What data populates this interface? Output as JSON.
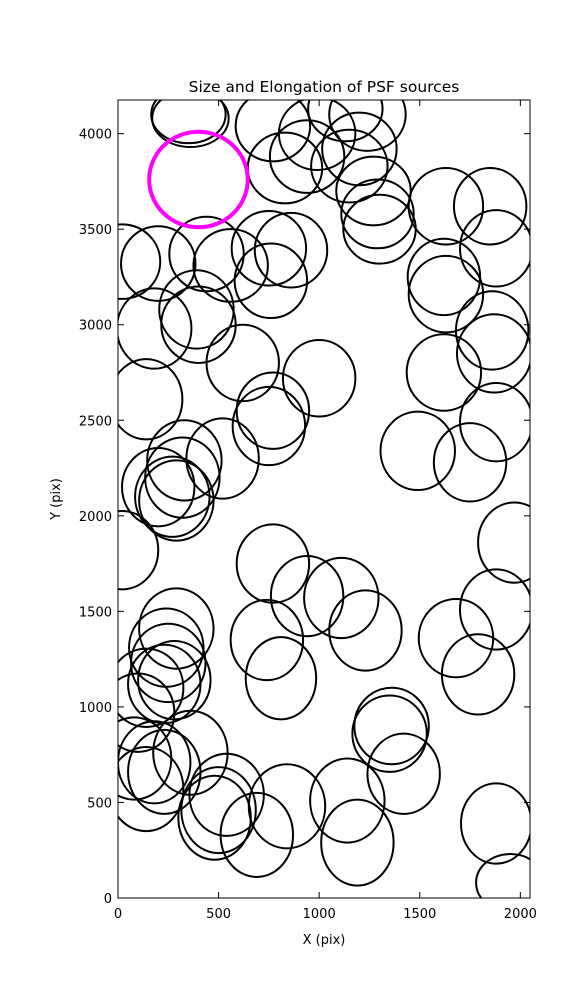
{
  "chart_data": {
    "type": "ellipse",
    "title": "Size and Elongation of PSF sources",
    "xlabel": "X (pix)",
    "ylabel": "Y (pix)",
    "xlim": [
      0,
      2048
    ],
    "ylim": [
      0,
      4176
    ],
    "xticks": [
      0,
      500,
      1000,
      1500,
      2000
    ],
    "yticks": [
      0,
      500,
      1000,
      1500,
      2000,
      2500,
      3000,
      3500,
      4000
    ],
    "series": [
      {
        "color": "#000000",
        "x": [
          350,
          360,
          770,
          830,
          940,
          990,
          1130,
          1150,
          1200,
          1240,
          1270,
          1290,
          1300,
          1630,
          1850,
          1880,
          1620,
          1630,
          1860,
          1870,
          1620,
          1880,
          1750,
          1490,
          1970,
          1880,
          1680,
          1790,
          1880,
          1950,
          1000,
          770,
          750,
          620,
          750,
          860,
          760,
          560,
          440,
          390,
          400,
          200,
          20,
          180,
          140,
          520,
          330,
          320,
          200,
          290,
          270,
          20,
          770,
          940,
          1110,
          1230,
          740,
          810,
          290,
          240,
          250,
          280,
          230,
          140,
          100,
          80,
          180,
          140,
          230,
          360,
          540,
          500,
          480,
          690,
          840,
          1140,
          1190,
          1350,
          1360,
          1420
        ],
        "y": [
          4100,
          4080,
          4040,
          3820,
          3880,
          4000,
          4130,
          3830,
          3920,
          4100,
          3700,
          3580,
          3500,
          3620,
          3620,
          3400,
          3250,
          3160,
          2970,
          2850,
          2750,
          2490,
          2280,
          2340,
          1860,
          1510,
          1360,
          1170,
          390,
          80,
          2720,
          2550,
          2470,
          2800,
          3400,
          3390,
          3230,
          3310,
          3370,
          3080,
          3000,
          3320,
          3330,
          2980,
          2610,
          2300,
          2290,
          2200,
          2150,
          2080,
          2100,
          1820,
          1750,
          1580,
          1570,
          1400,
          1350,
          1150,
          1410,
          1310,
          1230,
          1140,
          1120,
          1100,
          970,
          730,
          710,
          570,
          660,
          760,
          540,
          460,
          420,
          330,
          480,
          510,
          290,
          860,
          900,
          650
        ],
        "width": [
          370,
          380,
          370,
          370,
          370,
          380,
          370,
          380,
          370,
          380,
          370,
          360,
          360,
          370,
          360,
          360,
          360,
          370,
          360,
          370,
          370,
          360,
          360,
          370,
          360,
          360,
          370,
          360,
          350,
          340,
          360,
          360,
          360,
          360,
          370,
          360,
          360,
          370,
          370,
          370,
          370,
          370,
          380,
          370,
          360,
          360,
          370,
          370,
          360,
          370,
          370,
          360,
          360,
          360,
          370,
          360,
          360,
          350,
          370,
          370,
          370,
          360,
          360,
          370,
          360,
          370,
          360,
          370,
          360,
          370,
          370,
          370,
          360,
          360,
          380,
          370,
          360,
          370,
          370,
          360
        ],
        "height": [
          300,
          300,
          370,
          370,
          380,
          380,
          340,
          380,
          380,
          380,
          360,
          360,
          360,
          400,
          400,
          400,
          400,
          400,
          410,
          410,
          400,
          410,
          410,
          410,
          420,
          420,
          410,
          420,
          420,
          300,
          400,
          400,
          410,
          400,
          390,
          390,
          390,
          380,
          390,
          410,
          400,
          390,
          390,
          420,
          420,
          420,
          420,
          420,
          410,
          420,
          420,
          410,
          410,
          420,
          420,
          420,
          420,
          430,
          420,
          410,
          410,
          410,
          410,
          410,
          410,
          430,
          430,
          440,
          440,
          440,
          430,
          450,
          440,
          440,
          440,
          440,
          450,
          400,
          400,
          420
        ]
      },
      {
        "color": "#ff00ff",
        "x": [
          400
        ],
        "y": [
          3760
        ],
        "width": [
          490
        ],
        "height": [
          500
        ]
      }
    ]
  }
}
